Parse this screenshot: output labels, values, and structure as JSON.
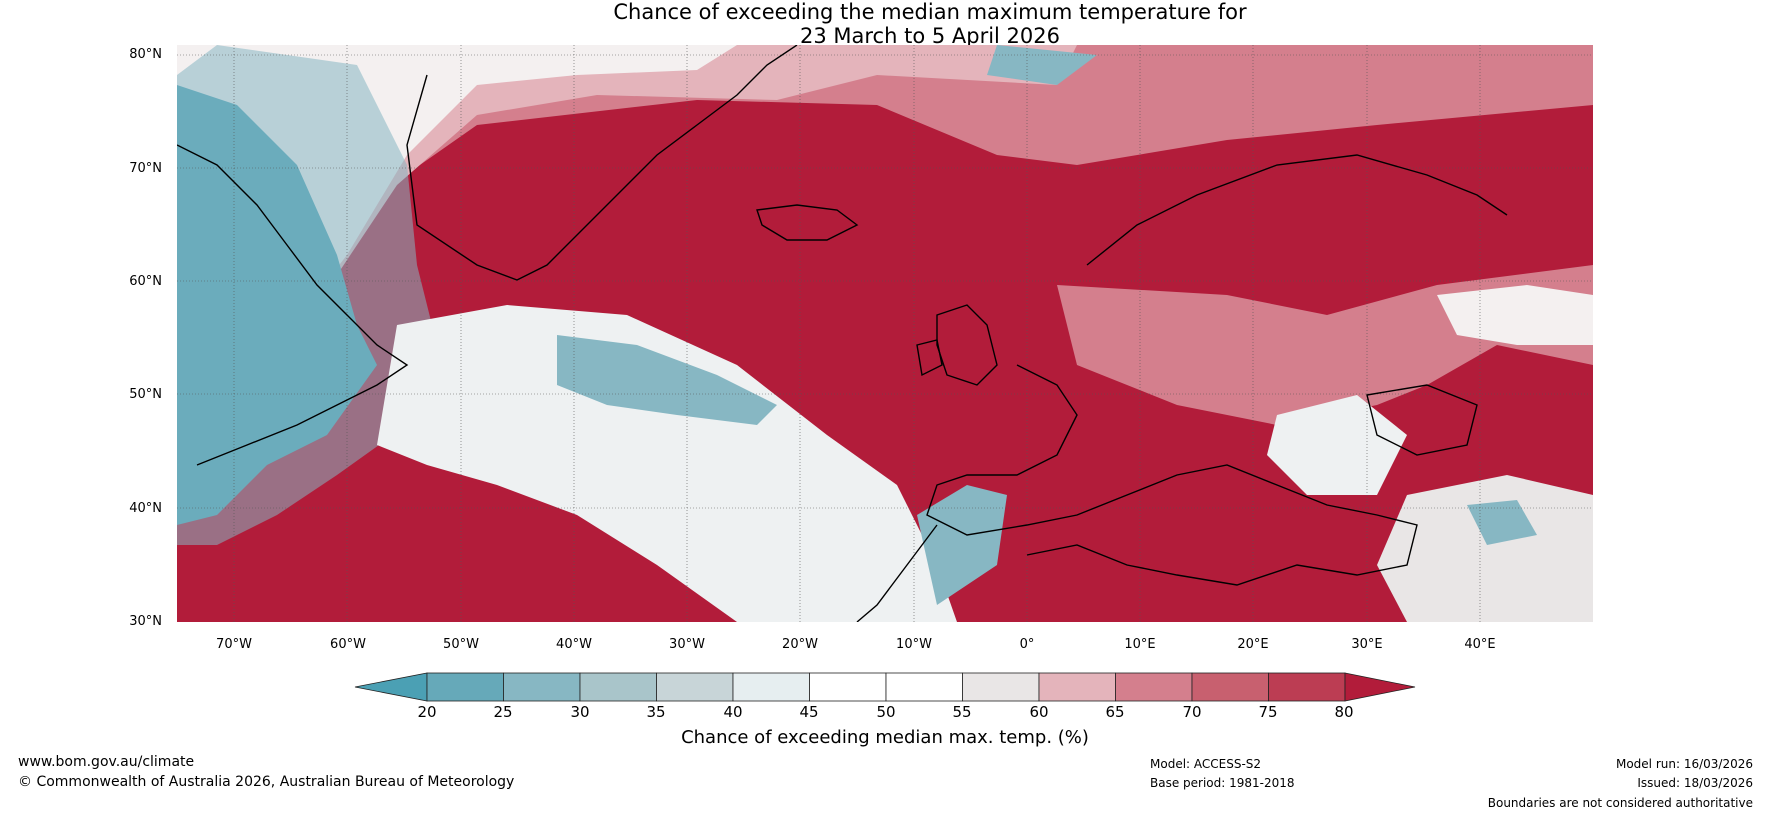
{
  "title": {
    "line1": "Chance of exceeding the median maximum temperature for",
    "line2": "23 March to 5 April 2026"
  },
  "map": {
    "lat_labels": [
      "80°N",
      "70°N",
      "60°N",
      "50°N",
      "40°N",
      "30°N"
    ],
    "lon_labels": [
      "70°W",
      "60°W",
      "50°W",
      "40°W",
      "30°W",
      "20°W",
      "10°W",
      "0°",
      "10°E",
      "20°E",
      "30°E",
      "40°E"
    ],
    "dominant_color": "#b21c3a"
  },
  "colorbar": {
    "ticks": [
      "20",
      "25",
      "30",
      "35",
      "40",
      "45",
      "50",
      "55",
      "60",
      "65",
      "70",
      "75",
      "80"
    ],
    "colors": [
      "#4ba0b4",
      "#66a9b9",
      "#87b7c3",
      "#a9c5ca",
      "#c8d5d8",
      "#e6eef0",
      "#ffffff",
      "#ffffff",
      "#e9e6e6",
      "#e4b4bb",
      "#d47f8d",
      "#c8606f",
      "#bc3d53",
      "#b21c3a"
    ],
    "label": "Chance of exceeding median max. temp. (%)"
  },
  "footer": {
    "url": "www.bom.gov.au/climate",
    "copyright": "© Commonwealth of Australia 2026, Australian Bureau of Meteorology",
    "model": "Model: ACCESS-S2",
    "base_period": "Base period: 1981-2018",
    "model_run": "Model run: 16/03/2026",
    "issued": "Issued: 18/03/2026",
    "disclaimer": "Boundaries are not considered authoritative"
  }
}
